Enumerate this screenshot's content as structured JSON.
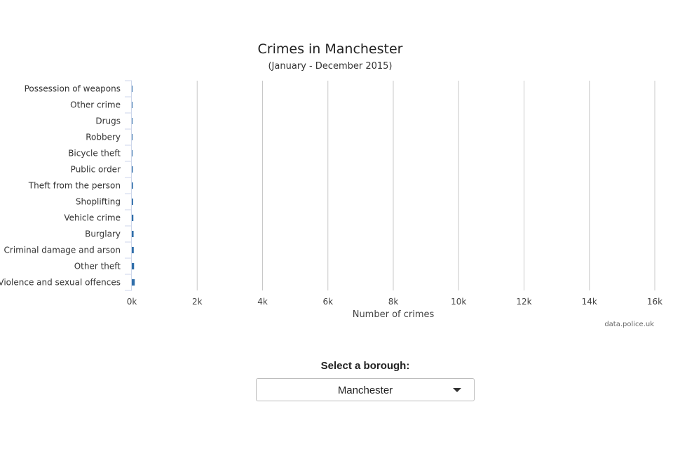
{
  "chart_data": {
    "type": "bar",
    "orientation": "horizontal",
    "title": "Crimes in Manchester",
    "subtitle": "(January - December 2015)",
    "categories": [
      "Possession of weapons",
      "Other crime",
      "Drugs",
      "Robbery",
      "Bicycle theft",
      "Public order",
      "Theft from the person",
      "Shoplifting",
      "Vehicle crime",
      "Burglary",
      "Criminal damage and arson",
      "Other theft",
      "Violence and sexual offences"
    ],
    "values": [
      5,
      8,
      12,
      18,
      22,
      30,
      35,
      40,
      48,
      55,
      60,
      70,
      90
    ],
    "xlabel": "Number of crimes",
    "xlim": [
      0,
      16000
    ],
    "ticks": [
      0,
      2000,
      4000,
      6000,
      8000,
      10000,
      12000,
      14000,
      16000
    ],
    "tick_labels": [
      "0k",
      "2k",
      "4k",
      "6k",
      "8k",
      "10k",
      "12k",
      "14k",
      "16k"
    ],
    "grid": "vertical",
    "bar_color": "#2f6ea9",
    "credits": "data.police.uk"
  },
  "selector": {
    "label": "Select a borough:",
    "value": "Manchester"
  }
}
